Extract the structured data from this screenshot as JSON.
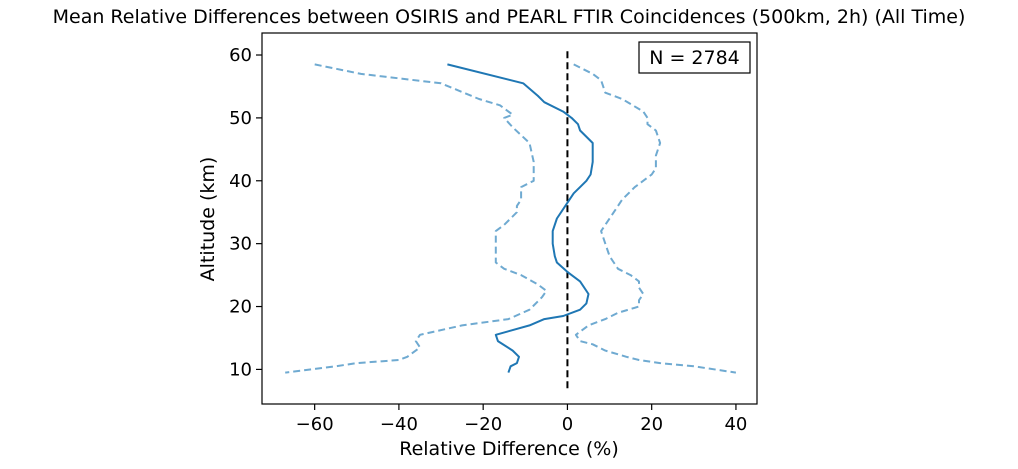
{
  "chart_data": {
    "type": "line",
    "title": "Mean Relative Differences between OSIRIS and PEARL FTIR Coincidences (500km, 2h) (All Time)",
    "xlabel": "Relative Difference (%)",
    "ylabel": "Altitude (km)",
    "xlim": [
      -72.5,
      45
    ],
    "ylim": [
      4.5,
      63.5
    ],
    "xticks": [
      -60,
      -40,
      -20,
      0,
      20,
      40
    ],
    "yticks": [
      10,
      20,
      30,
      40,
      50,
      60
    ],
    "grid": false,
    "annotation": {
      "text": "N = 2784",
      "placement": "top-right"
    },
    "reference_line": {
      "x": 0,
      "y_range": [
        7,
        61
      ],
      "style": "dashed",
      "color": "#000000"
    },
    "series": [
      {
        "role": "mean",
        "style": "solid",
        "color": "#1f77b4",
        "points": [
          {
            "x": -28.5,
            "y": 58.5
          },
          {
            "x": -10.5,
            "y": 55.5
          },
          {
            "x": -7,
            "y": 53.5
          },
          {
            "x": -5.5,
            "y": 52.5
          },
          {
            "x": -1,
            "y": 51
          },
          {
            "x": 1,
            "y": 50
          },
          {
            "x": 2.5,
            "y": 49
          },
          {
            "x": 3,
            "y": 48
          },
          {
            "x": 6,
            "y": 46
          },
          {
            "x": 6,
            "y": 43
          },
          {
            "x": 5.5,
            "y": 41
          },
          {
            "x": 4.5,
            "y": 40
          },
          {
            "x": 3,
            "y": 39
          },
          {
            "x": 1.5,
            "y": 38
          },
          {
            "x": -0.5,
            "y": 36
          },
          {
            "x": -2.5,
            "y": 34
          },
          {
            "x": -3.5,
            "y": 32
          },
          {
            "x": -3.5,
            "y": 30
          },
          {
            "x": -3,
            "y": 28
          },
          {
            "x": -2.5,
            "y": 27
          },
          {
            "x": 0,
            "y": 25.5
          },
          {
            "x": 3,
            "y": 24
          },
          {
            "x": 5,
            "y": 22
          },
          {
            "x": 4.5,
            "y": 20.5
          },
          {
            "x": 3,
            "y": 19.5
          },
          {
            "x": -1,
            "y": 18.5
          },
          {
            "x": -5.5,
            "y": 18
          },
          {
            "x": -9,
            "y": 17
          },
          {
            "x": -17,
            "y": 15.5
          },
          {
            "x": -16.5,
            "y": 14.5
          },
          {
            "x": -13,
            "y": 13
          },
          {
            "x": -11.5,
            "y": 12
          },
          {
            "x": -12,
            "y": 11
          },
          {
            "x": -13.5,
            "y": 10.5
          },
          {
            "x": -14,
            "y": 9.5
          }
        ]
      },
      {
        "role": "lower-bound",
        "style": "dashed",
        "color": "#6faad1",
        "points": [
          {
            "x": -60,
            "y": 58.5
          },
          {
            "x": -49,
            "y": 57
          },
          {
            "x": -30,
            "y": 55.5
          },
          {
            "x": -21,
            "y": 53
          },
          {
            "x": -16,
            "y": 52
          },
          {
            "x": -13,
            "y": 50.5
          },
          {
            "x": -15,
            "y": 50
          },
          {
            "x": -13,
            "y": 48.5
          },
          {
            "x": -9,
            "y": 46
          },
          {
            "x": -8,
            "y": 43
          },
          {
            "x": -8,
            "y": 40
          },
          {
            "x": -11,
            "y": 39
          },
          {
            "x": -11,
            "y": 37
          },
          {
            "x": -12,
            "y": 36
          },
          {
            "x": -12,
            "y": 35
          },
          {
            "x": -15,
            "y": 33
          },
          {
            "x": -17,
            "y": 32
          },
          {
            "x": -17,
            "y": 27
          },
          {
            "x": -15,
            "y": 26
          },
          {
            "x": -11,
            "y": 25
          },
          {
            "x": -7,
            "y": 23.5
          },
          {
            "x": -5,
            "y": 22.5
          },
          {
            "x": -6,
            "y": 21.5
          },
          {
            "x": -9,
            "y": 19.5
          },
          {
            "x": -14,
            "y": 18
          },
          {
            "x": -25,
            "y": 17
          },
          {
            "x": -35,
            "y": 15.5
          },
          {
            "x": -36,
            "y": 14.5
          },
          {
            "x": -35,
            "y": 13.5
          },
          {
            "x": -38,
            "y": 12
          },
          {
            "x": -40,
            "y": 11.5
          },
          {
            "x": -50,
            "y": 11
          },
          {
            "x": -55,
            "y": 10.5
          },
          {
            "x": -67,
            "y": 9.5
          }
        ]
      },
      {
        "role": "upper-bound",
        "style": "dashed",
        "color": "#6faad1",
        "points": [
          {
            "x": 1.5,
            "y": 58.5
          },
          {
            "x": 6,
            "y": 57
          },
          {
            "x": 8,
            "y": 56
          },
          {
            "x": 9,
            "y": 54
          },
          {
            "x": 13,
            "y": 53
          },
          {
            "x": 18,
            "y": 51
          },
          {
            "x": 19,
            "y": 50
          },
          {
            "x": 19,
            "y": 49
          },
          {
            "x": 21,
            "y": 48
          },
          {
            "x": 22,
            "y": 46
          },
          {
            "x": 21,
            "y": 44
          },
          {
            "x": 21,
            "y": 42
          },
          {
            "x": 20,
            "y": 41
          },
          {
            "x": 16,
            "y": 39
          },
          {
            "x": 13,
            "y": 37
          },
          {
            "x": 11,
            "y": 35
          },
          {
            "x": 9,
            "y": 33
          },
          {
            "x": 8,
            "y": 32
          },
          {
            "x": 9,
            "y": 30
          },
          {
            "x": 10,
            "y": 28
          },
          {
            "x": 11,
            "y": 27
          },
          {
            "x": 12,
            "y": 26
          },
          {
            "x": 15,
            "y": 25
          },
          {
            "x": 17,
            "y": 24
          },
          {
            "x": 17,
            "y": 23
          },
          {
            "x": 18,
            "y": 22
          },
          {
            "x": 17,
            "y": 21
          },
          {
            "x": 17,
            "y": 20
          },
          {
            "x": 12,
            "y": 19
          },
          {
            "x": 9,
            "y": 18
          },
          {
            "x": 5,
            "y": 17
          },
          {
            "x": 3,
            "y": 16
          },
          {
            "x": 2,
            "y": 15.5
          },
          {
            "x": 3,
            "y": 14.5
          },
          {
            "x": 6,
            "y": 14
          },
          {
            "x": 9,
            "y": 13
          },
          {
            "x": 14,
            "y": 12
          },
          {
            "x": 17,
            "y": 11.5
          },
          {
            "x": 22,
            "y": 11
          },
          {
            "x": 30,
            "y": 10.5
          },
          {
            "x": 40,
            "y": 9.5
          }
        ]
      }
    ]
  }
}
